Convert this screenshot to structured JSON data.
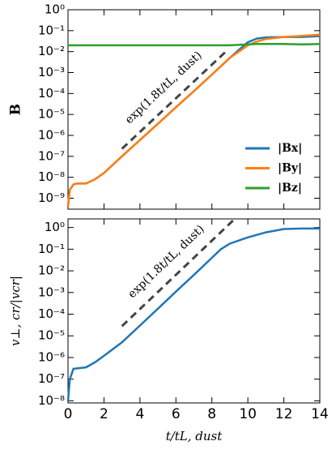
{
  "chart_data": [
    {
      "type": "line",
      "ylabel": "B",
      "yscale": "log",
      "xlim": [
        0,
        14
      ],
      "xticks": [
        0,
        2,
        4,
        6,
        8,
        10,
        12,
        14
      ],
      "ylim": [
        3e-10,
        1
      ],
      "yticks": [
        {
          "value": 1,
          "label": "10⁰"
        },
        {
          "value": 0.1,
          "label": "10⁻¹"
        },
        {
          "value": 0.01,
          "label": "10⁻²"
        },
        {
          "value": 0.001,
          "label": "10⁻³"
        },
        {
          "value": 0.0001,
          "label": "10⁻⁴"
        },
        {
          "value": 1e-05,
          "label": "10⁻⁵"
        },
        {
          "value": 1e-06,
          "label": "10⁻⁶"
        },
        {
          "value": 1e-07,
          "label": "10⁻⁷"
        },
        {
          "value": 1e-08,
          "label": "10⁻⁸"
        },
        {
          "value": 1e-09,
          "label": "10⁻⁹"
        }
      ],
      "legend": "lower right",
      "x": [
        0,
        0.1,
        0.3,
        0.5,
        1,
        1.5,
        2,
        3,
        4,
        5,
        6,
        7,
        8,
        8.5,
        9,
        9.5,
        10,
        10.5,
        11,
        12,
        13,
        14
      ],
      "series": [
        {
          "name": "|Bx|",
          "color": "#1f77b4",
          "values": [
            4e-10,
            2.5e-09,
            4.5e-09,
            5e-09,
            5e-09,
            8e-09,
            1.6e-08,
            1e-07,
            6e-07,
            3.6e-06,
            2.2e-05,
            0.00013,
            0.0008,
            0.002,
            0.005,
            0.012,
            0.028,
            0.042,
            0.048,
            0.05,
            0.05,
            0.055
          ]
        },
        {
          "name": "|By|",
          "color": "#ff7f0e",
          "values": [
            4e-10,
            2.5e-09,
            4.5e-09,
            5e-09,
            5e-09,
            8e-09,
            1.6e-08,
            1e-07,
            6e-07,
            3.6e-06,
            2.2e-05,
            0.00013,
            0.0008,
            0.002,
            0.005,
            0.01,
            0.02,
            0.03,
            0.04,
            0.05,
            0.056,
            0.065
          ]
        },
        {
          "name": "|Bz|",
          "color": "#2ca02c",
          "values": [
            0.02,
            0.02,
            0.02,
            0.02,
            0.02,
            0.02,
            0.02,
            0.02,
            0.02,
            0.02,
            0.02,
            0.02,
            0.02,
            0.02,
            0.02,
            0.021,
            0.022,
            0.023,
            0.023,
            0.023,
            0.022,
            0.023
          ]
        }
      ],
      "guide": {
        "text": "exp(1.8t/tL, dust)",
        "color": "#444444",
        "x": [
          3,
          8.9
        ],
        "values": [
          2.3e-07,
          0.0126
        ]
      }
    },
    {
      "type": "line",
      "ylabel": "v⊥, cr/|vcr|",
      "xlabel": "t/tL, dust",
      "yscale": "log",
      "xlim": [
        0,
        14
      ],
      "xticks": [
        0,
        2,
        4,
        6,
        8,
        10,
        12,
        14
      ],
      "ylim": [
        8e-09,
        2.5
      ],
      "yticks": [
        {
          "value": 1,
          "label": "10⁰"
        },
        {
          "value": 0.1,
          "label": "10⁻¹"
        },
        {
          "value": 0.01,
          "label": "10⁻²"
        },
        {
          "value": 0.001,
          "label": "10⁻³"
        },
        {
          "value": 0.0001,
          "label": "10⁻⁴"
        },
        {
          "value": 1e-05,
          "label": "10⁻⁵"
        },
        {
          "value": 1e-06,
          "label": "10⁻⁶"
        },
        {
          "value": 1e-07,
          "label": "10⁻⁷"
        },
        {
          "value": 1e-08,
          "label": "10⁻⁸"
        }
      ],
      "x": [
        0,
        0.1,
        0.3,
        1,
        1.5,
        2,
        3,
        4,
        5,
        6,
        7,
        8,
        8.5,
        9,
        10,
        11,
        12,
        13,
        14
      ],
      "series": [
        {
          "color": "#1f77b4",
          "values": [
            9e-09,
            1e-07,
            3e-07,
            3.5e-07,
            6e-07,
            1.2e-06,
            5e-06,
            3e-05,
            0.00018,
            0.0011,
            0.0065,
            0.04,
            0.1,
            0.18,
            0.35,
            0.6,
            0.85,
            0.9,
            0.9
          ]
        }
      ],
      "guide": {
        "text": "exp(1.8t/tL, dust)",
        "color": "#444444",
        "x": [
          3,
          9.2
        ],
        "values": [
          2.8e-05,
          2.2
        ]
      }
    }
  ]
}
